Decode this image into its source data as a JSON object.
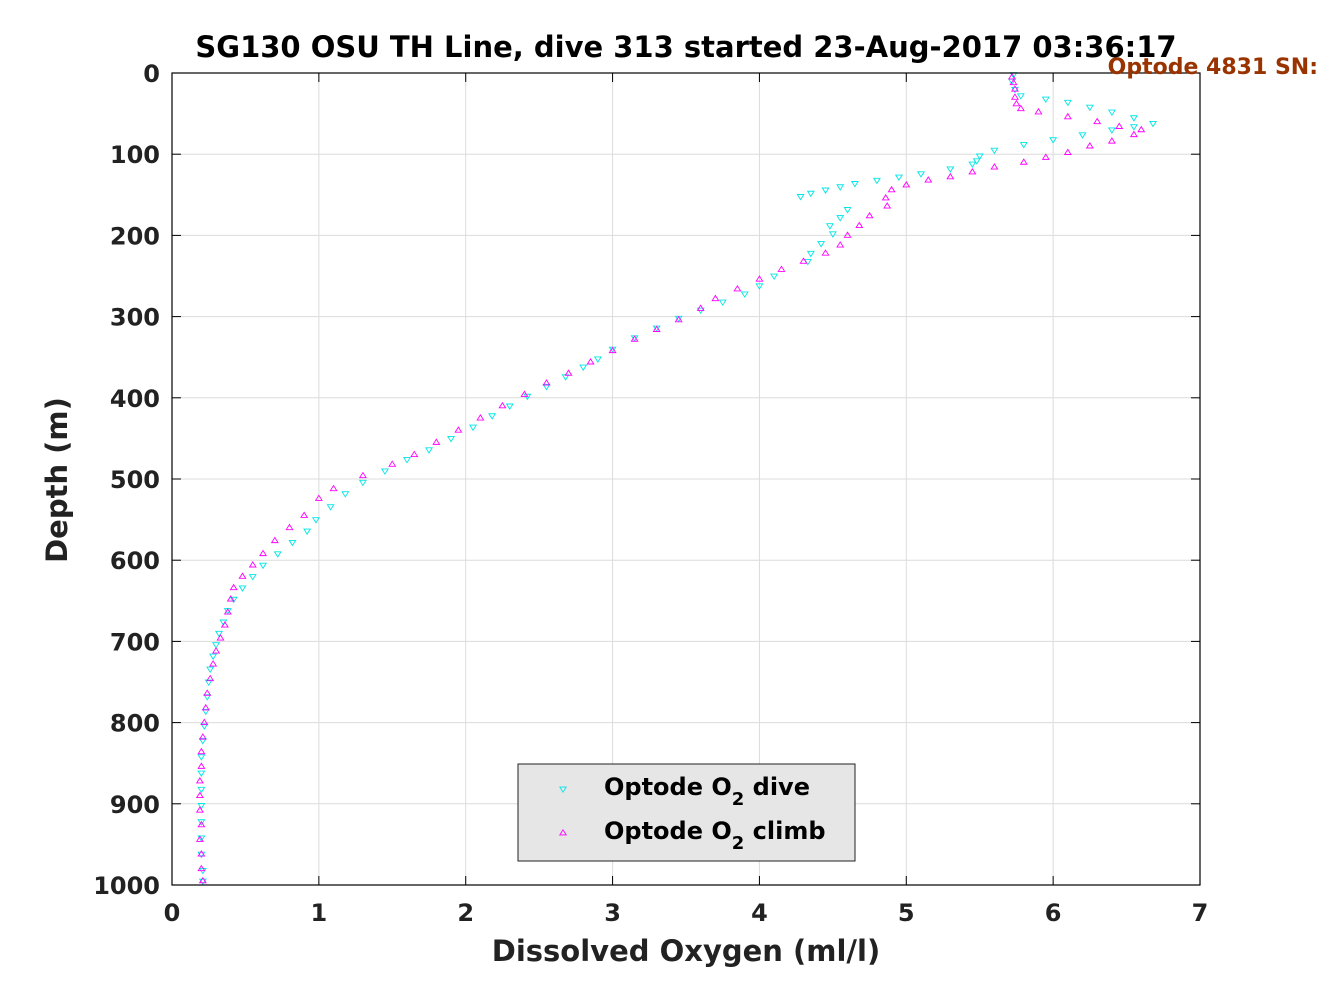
{
  "chart_data": {
    "type": "scatter",
    "title": "SG130 OSU TH Line, dive 313 started 23-Aug-2017 03:36:17",
    "annotation": "Optode 4831 SN:",
    "xlabel": "Dissolved Oxygen (ml/l)",
    "ylabel": "Depth (m)",
    "xlim": [
      0,
      7
    ],
    "ylim": [
      0,
      1000
    ],
    "y_reversed": true,
    "grid": true,
    "x_ticks": [
      "0",
      "1",
      "2",
      "3",
      "4",
      "5",
      "6",
      "7"
    ],
    "y_ticks": [
      "0",
      "100",
      "200",
      "300",
      "400",
      "500",
      "600",
      "700",
      "800",
      "900",
      "1000"
    ],
    "legend_position": "bottom-center",
    "colors": {
      "dive": "#00e5e5",
      "climb": "#ff00ff"
    },
    "series": [
      {
        "id": "dive",
        "marker": "triangle-down",
        "legend": {
          "prefix": "Optode O",
          "sub": "2",
          "suffix": " dive"
        },
        "points": [
          [
            5.73,
            2
          ],
          [
            5.72,
            10
          ],
          [
            5.74,
            20
          ],
          [
            5.78,
            28
          ],
          [
            5.95,
            32
          ],
          [
            6.1,
            36
          ],
          [
            6.25,
            42
          ],
          [
            6.4,
            48
          ],
          [
            6.55,
            55
          ],
          [
            6.68,
            62
          ],
          [
            6.55,
            66
          ],
          [
            6.4,
            70
          ],
          [
            6.2,
            76
          ],
          [
            6.0,
            82
          ],
          [
            5.8,
            88
          ],
          [
            5.6,
            95
          ],
          [
            5.5,
            102
          ],
          [
            5.48,
            108
          ],
          [
            5.45,
            112
          ],
          [
            5.3,
            118
          ],
          [
            5.1,
            124
          ],
          [
            4.95,
            128
          ],
          [
            4.8,
            132
          ],
          [
            4.65,
            136
          ],
          [
            4.55,
            140
          ],
          [
            4.45,
            144
          ],
          [
            4.35,
            148
          ],
          [
            4.28,
            152
          ],
          [
            4.6,
            168
          ],
          [
            4.55,
            178
          ],
          [
            4.48,
            188
          ],
          [
            4.5,
            198
          ],
          [
            4.42,
            210
          ],
          [
            4.35,
            222
          ],
          [
            4.33,
            232
          ],
          [
            4.1,
            250
          ],
          [
            4.0,
            262
          ],
          [
            3.9,
            272
          ],
          [
            3.75,
            282
          ],
          [
            3.6,
            292
          ],
          [
            3.45,
            302
          ],
          [
            3.3,
            314
          ],
          [
            3.15,
            326
          ],
          [
            3.0,
            340
          ],
          [
            2.9,
            352
          ],
          [
            2.8,
            362
          ],
          [
            2.68,
            374
          ],
          [
            2.55,
            386
          ],
          [
            2.42,
            398
          ],
          [
            2.3,
            410
          ],
          [
            2.18,
            422
          ],
          [
            2.05,
            436
          ],
          [
            1.9,
            450
          ],
          [
            1.75,
            464
          ],
          [
            1.6,
            476
          ],
          [
            1.45,
            490
          ],
          [
            1.3,
            504
          ],
          [
            1.18,
            518
          ],
          [
            1.08,
            534
          ],
          [
            0.98,
            550
          ],
          [
            0.92,
            564
          ],
          [
            0.82,
            578
          ],
          [
            0.72,
            592
          ],
          [
            0.62,
            606
          ],
          [
            0.55,
            620
          ],
          [
            0.48,
            634
          ],
          [
            0.42,
            648
          ],
          [
            0.38,
            662
          ],
          [
            0.35,
            676
          ],
          [
            0.32,
            690
          ],
          [
            0.3,
            704
          ],
          [
            0.28,
            718
          ],
          [
            0.26,
            734
          ],
          [
            0.25,
            750
          ],
          [
            0.24,
            768
          ],
          [
            0.23,
            786
          ],
          [
            0.22,
            804
          ],
          [
            0.21,
            822
          ],
          [
            0.2,
            842
          ],
          [
            0.2,
            862
          ],
          [
            0.2,
            882
          ],
          [
            0.2,
            902
          ],
          [
            0.2,
            922
          ],
          [
            0.2,
            942
          ],
          [
            0.2,
            962
          ],
          [
            0.21,
            982
          ],
          [
            0.21,
            995
          ]
        ]
      },
      {
        "id": "climb",
        "marker": "triangle-up",
        "legend": {
          "prefix": "Optode O",
          "sub": "2",
          "suffix": " climb"
        },
        "points": [
          [
            0.21,
            995
          ],
          [
            0.2,
            980
          ],
          [
            0.2,
            962
          ],
          [
            0.19,
            944
          ],
          [
            0.2,
            926
          ],
          [
            0.19,
            908
          ],
          [
            0.19,
            890
          ],
          [
            0.19,
            872
          ],
          [
            0.2,
            854
          ],
          [
            0.2,
            836
          ],
          [
            0.21,
            818
          ],
          [
            0.22,
            800
          ],
          [
            0.23,
            782
          ],
          [
            0.24,
            764
          ],
          [
            0.26,
            746
          ],
          [
            0.28,
            728
          ],
          [
            0.3,
            712
          ],
          [
            0.33,
            696
          ],
          [
            0.36,
            680
          ],
          [
            0.38,
            664
          ],
          [
            0.4,
            648
          ],
          [
            0.42,
            634
          ],
          [
            0.48,
            620
          ],
          [
            0.55,
            606
          ],
          [
            0.62,
            592
          ],
          [
            0.7,
            576
          ],
          [
            0.8,
            560
          ],
          [
            0.9,
            545
          ],
          [
            1.0,
            524
          ],
          [
            1.1,
            512
          ],
          [
            1.3,
            496
          ],
          [
            1.5,
            482
          ],
          [
            1.65,
            470
          ],
          [
            1.8,
            455
          ],
          [
            1.95,
            440
          ],
          [
            2.1,
            425
          ],
          [
            2.25,
            410
          ],
          [
            2.4,
            396
          ],
          [
            2.55,
            382
          ],
          [
            2.7,
            370
          ],
          [
            2.85,
            356
          ],
          [
            3.0,
            342
          ],
          [
            3.15,
            328
          ],
          [
            3.3,
            316
          ],
          [
            3.45,
            304
          ],
          [
            3.6,
            290
          ],
          [
            3.7,
            278
          ],
          [
            3.85,
            266
          ],
          [
            4.0,
            254
          ],
          [
            4.15,
            242
          ],
          [
            4.3,
            232
          ],
          [
            4.45,
            222
          ],
          [
            4.55,
            212
          ],
          [
            4.6,
            200
          ],
          [
            4.68,
            188
          ],
          [
            4.75,
            176
          ],
          [
            4.87,
            164
          ],
          [
            4.86,
            154
          ],
          [
            4.9,
            144
          ],
          [
            5.0,
            138
          ],
          [
            5.15,
            132
          ],
          [
            5.3,
            128
          ],
          [
            5.45,
            122
          ],
          [
            5.6,
            116
          ],
          [
            5.8,
            110
          ],
          [
            5.95,
            104
          ],
          [
            6.1,
            98
          ],
          [
            6.25,
            90
          ],
          [
            6.4,
            84
          ],
          [
            6.55,
            76
          ],
          [
            6.6,
            70
          ],
          [
            6.45,
            66
          ],
          [
            6.3,
            60
          ],
          [
            6.1,
            54
          ],
          [
            5.9,
            48
          ],
          [
            5.78,
            44
          ],
          [
            5.75,
            38
          ],
          [
            5.74,
            30
          ],
          [
            5.74,
            20
          ],
          [
            5.73,
            12
          ],
          [
            5.72,
            5
          ]
        ]
      }
    ]
  }
}
